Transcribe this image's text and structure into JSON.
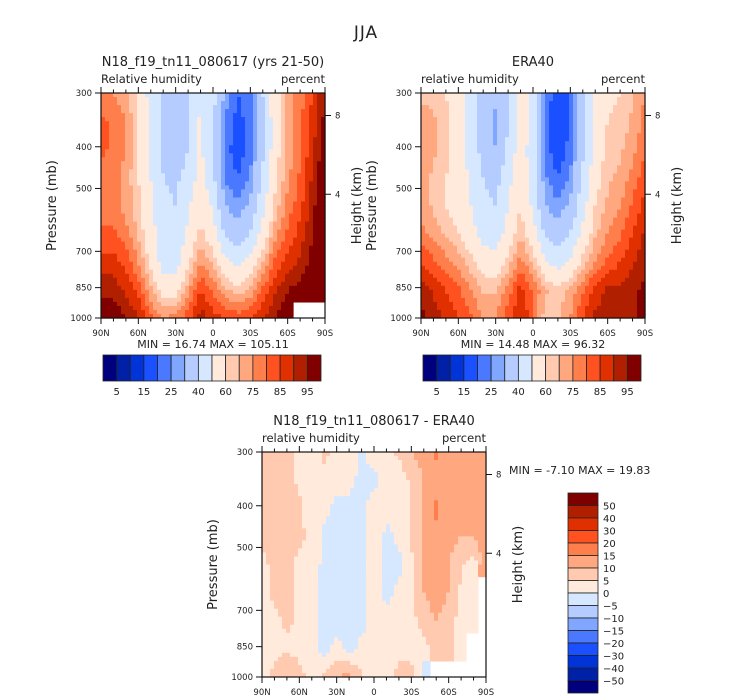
{
  "figure_title": "JJA",
  "chart_data": [
    {
      "type": "heatmap",
      "title": "N18_f19_tn11_080617 (yrs 21-50)",
      "left_string": "Relative humidity",
      "right_string": "percent",
      "ylabel": "Pressure (mb)",
      "ylabel_right": "Height (km)",
      "x_ticks": [
        "90N",
        "60N",
        "30N",
        "0",
        "30S",
        "60S",
        "90S"
      ],
      "y_ticks": [
        "300",
        "400",
        "500",
        "700",
        "850",
        "1000"
      ],
      "y_right_ticks": [
        "8",
        "4"
      ],
      "xlim": [
        90,
        -90
      ],
      "ylim": [
        1000,
        300
      ],
      "stats": {
        "min_label": "MIN =",
        "min": "16.74",
        "max_label": "MAX =",
        "max": "105.11"
      },
      "colorbar_labels": [
        "5",
        "15",
        "25",
        "40",
        "60",
        "75",
        "85",
        "95"
      ],
      "levels": [
        5,
        10,
        15,
        20,
        25,
        30,
        40,
        50,
        60,
        65,
        70,
        75,
        80,
        85,
        90,
        95
      ],
      "field_description": "Dry subtropical regions (blue) near 30N-10N and a strong minimum near 15S-25S at 400-600 mb; moist (red) near surface and at high southern latitudes",
      "grid": [
        [
          72,
          70,
          66,
          58,
          46,
          38,
          36,
          40,
          48,
          44,
          28,
          20,
          24,
          40,
          56,
          68,
          72,
          80,
          90
        ],
        [
          76,
          74,
          70,
          60,
          48,
          38,
          30,
          40,
          52,
          40,
          24,
          18,
          22,
          38,
          56,
          66,
          74,
          82,
          92
        ],
        [
          76,
          74,
          70,
          60,
          48,
          38,
          32,
          40,
          52,
          38,
          22,
          17,
          22,
          38,
          56,
          68,
          74,
          84,
          94
        ],
        [
          74,
          72,
          68,
          60,
          50,
          40,
          38,
          44,
          54,
          42,
          24,
          20,
          26,
          42,
          58,
          68,
          76,
          86,
          96
        ],
        [
          72,
          72,
          68,
          62,
          52,
          42,
          40,
          48,
          58,
          48,
          30,
          26,
          32,
          46,
          62,
          72,
          78,
          88,
          98
        ],
        [
          76,
          76,
          72,
          64,
          54,
          44,
          42,
          52,
          62,
          54,
          38,
          34,
          40,
          54,
          68,
          76,
          82,
          90,
          100
        ],
        [
          82,
          82,
          78,
          70,
          58,
          46,
          46,
          58,
          70,
          64,
          52,
          48,
          54,
          64,
          76,
          82,
          86,
          92,
          102
        ],
        [
          88,
          88,
          84,
          78,
          66,
          56,
          56,
          68,
          80,
          74,
          66,
          62,
          66,
          76,
          84,
          90,
          92,
          96,
          104
        ],
        [
          96,
          94,
          90,
          86,
          76,
          70,
          72,
          78,
          88,
          82,
          80,
          78,
          80,
          84,
          90,
          94,
          null,
          null,
          null
        ]
      ]
    },
    {
      "type": "heatmap",
      "title": "ERA40",
      "left_string": "relative humidity",
      "right_string": "percent",
      "ylabel": "Pressure (mb)",
      "ylabel_right": "Height (km)",
      "x_ticks": [
        "90N",
        "60N",
        "30N",
        "0",
        "30S",
        "60S",
        "90S"
      ],
      "y_ticks": [
        "300",
        "400",
        "500",
        "700",
        "850",
        "1000"
      ],
      "y_right_ticks": [
        "8",
        "4"
      ],
      "xlim": [
        90,
        -90
      ],
      "ylim": [
        1000,
        300
      ],
      "stats": {
        "min_label": "MIN =",
        "min": "14.48",
        "max_label": "MAX =",
        "max": "96.32"
      },
      "colorbar_labels": [
        "5",
        "15",
        "25",
        "40",
        "60",
        "75",
        "85",
        "95"
      ],
      "levels": [
        5,
        10,
        15,
        20,
        25,
        30,
        40,
        50,
        60,
        65,
        70,
        75,
        80,
        85,
        90,
        95
      ],
      "field_description": "Similar structure to model; drier mid-troposphere minimum near 15S-25S, moist boundary layer",
      "grid": [
        [
          62,
          62,
          60,
          54,
          46,
          36,
          32,
          40,
          54,
          48,
          24,
          16,
          20,
          36,
          52,
          58,
          60,
          64,
          70
        ],
        [
          70,
          66,
          62,
          56,
          46,
          34,
          28,
          40,
          56,
          46,
          22,
          15,
          20,
          36,
          54,
          60,
          62,
          66,
          72
        ],
        [
          70,
          66,
          62,
          56,
          46,
          36,
          30,
          42,
          56,
          44,
          22,
          16,
          22,
          38,
          54,
          62,
          64,
          68,
          74
        ],
        [
          68,
          64,
          60,
          56,
          48,
          40,
          36,
          46,
          58,
          44,
          26,
          20,
          26,
          42,
          56,
          64,
          66,
          72,
          78
        ],
        [
          68,
          64,
          60,
          56,
          50,
          42,
          40,
          50,
          60,
          48,
          30,
          26,
          32,
          46,
          60,
          66,
          70,
          76,
          82
        ],
        [
          72,
          68,
          64,
          60,
          54,
          46,
          44,
          54,
          64,
          54,
          38,
          34,
          40,
          52,
          64,
          70,
          74,
          80,
          86
        ],
        [
          80,
          76,
          72,
          68,
          62,
          56,
          54,
          62,
          72,
          64,
          50,
          46,
          52,
          62,
          70,
          76,
          80,
          84,
          88
        ],
        [
          88,
          84,
          80,
          76,
          70,
          64,
          64,
          72,
          82,
          74,
          66,
          62,
          66,
          74,
          82,
          86,
          86,
          88,
          92
        ],
        [
          92,
          88,
          84,
          80,
          76,
          70,
          70,
          78,
          86,
          76,
          62,
          64,
          70,
          80,
          86,
          88,
          86,
          88,
          94
        ]
      ]
    },
    {
      "type": "heatmap",
      "title": "N18_f19_tn11_080617 - ERA40",
      "left_string": "relative humidity",
      "right_string": "percent",
      "ylabel": "Pressure (mb)",
      "ylabel_right": "Height (km)",
      "x_ticks": [
        "90N",
        "60N",
        "30N",
        "0",
        "30S",
        "60S",
        "90S"
      ],
      "y_ticks": [
        "300",
        "400",
        "500",
        "700",
        "850",
        "1000"
      ],
      "y_right_ticks": [
        "8",
        "4"
      ],
      "xlim": [
        90,
        -90
      ],
      "ylim": [
        1000,
        300
      ],
      "stats": {
        "min_label": "MIN =",
        "min": "-7.10",
        "max_label": "MAX =",
        "max": "19.83"
      },
      "colorbar_labels": [
        "50",
        "40",
        "30",
        "20",
        "15",
        "10",
        "5",
        "0",
        "-5",
        "-10",
        "-15",
        "-20",
        "-30",
        "-40",
        "-50"
      ],
      "levels": [
        -50,
        -40,
        -30,
        -20,
        -15,
        -10,
        -5,
        0,
        5,
        10,
        15,
        20,
        30,
        40,
        50
      ],
      "field_description": "Mostly small positive differences (model moister), negative near 30N-10N mid-troposphere, larger positive near 50S-80S",
      "grid": [
        [
          10,
          6,
          6,
          4,
          2,
          6,
          4,
          4,
          -1,
          4,
          4,
          6,
          10,
          12,
          16,
          12,
          12,
          10,
          12
        ],
        [
          6,
          6,
          6,
          4,
          2,
          4,
          2,
          2,
          -2,
          -2,
          2,
          2,
          6,
          10,
          12,
          12,
          12,
          12,
          14
        ],
        [
          6,
          6,
          10,
          6,
          2,
          2,
          -2,
          -2,
          -2,
          4,
          2,
          2,
          6,
          10,
          16,
          12,
          12,
          12,
          14
        ],
        [
          6,
          6,
          8,
          6,
          4,
          -2,
          -2,
          -2,
          -2,
          6,
          -2,
          2,
          6,
          10,
          14,
          12,
          10,
          10,
          14
        ],
        [
          4,
          6,
          6,
          4,
          4,
          -2,
          -2,
          -2,
          -2,
          4,
          -2,
          -2,
          4,
          10,
          12,
          10,
          6,
          2,
          14
        ],
        [
          4,
          6,
          6,
          4,
          2,
          -2,
          -2,
          -2,
          -2,
          4,
          -2,
          2,
          4,
          10,
          14,
          10,
          4,
          2,
          null
        ],
        [
          2,
          4,
          6,
          4,
          2,
          -2,
          -2,
          -4,
          -2,
          2,
          2,
          2,
          4,
          6,
          10,
          6,
          4,
          2,
          null
        ],
        [
          2,
          4,
          4,
          4,
          2,
          -2,
          2,
          -2,
          2,
          2,
          2,
          4,
          4,
          4,
          6,
          6,
          4,
          null,
          null
        ],
        [
          4,
          6,
          10,
          6,
          4,
          6,
          10,
          12,
          6,
          2,
          4,
          6,
          6,
          -2,
          null,
          null,
          null,
          null,
          null
        ]
      ]
    }
  ],
  "palettes": {
    "absolute": [
      "#00007f",
      "#0020a8",
      "#0034d8",
      "#1a50ff",
      "#4a78ff",
      "#80a6ff",
      "#b4ccff",
      "#d6e8ff",
      "#ffeadc",
      "#ffcab0",
      "#ffa880",
      "#ff7f4c",
      "#ff5220",
      "#e03000",
      "#b02000",
      "#800000"
    ],
    "difference": [
      "#00007f",
      "#0020a8",
      "#0034d8",
      "#1a50ff",
      "#4a78ff",
      "#80a6ff",
      "#b4ccff",
      "#d6e8ff",
      "#ffeadc",
      "#ffcab0",
      "#ffa880",
      "#ff7f4c",
      "#ff5220",
      "#e03000",
      "#b02000",
      "#800000"
    ]
  }
}
